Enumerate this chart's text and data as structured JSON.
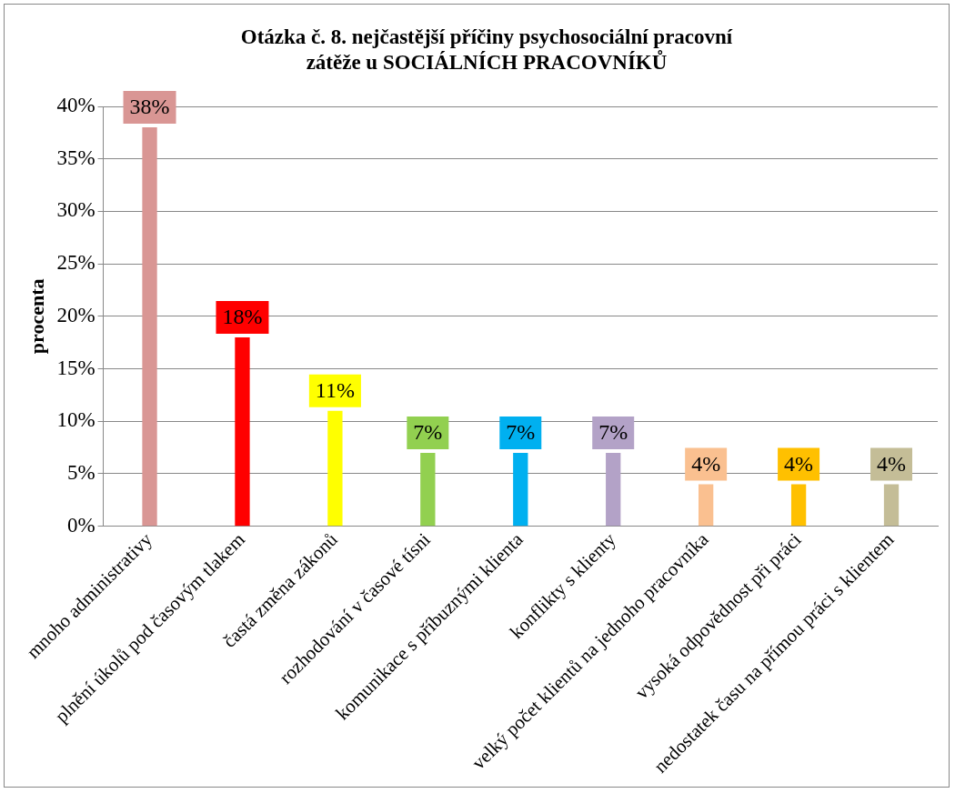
{
  "chart_data": {
    "type": "bar",
    "title": "Otázka č. 8. nejčastější příčiny psychosociální pracovní zátěže u SOCIÁLNÍCH PRACOVNÍKŮ",
    "ylabel": "procenta",
    "categories": [
      "mnoho administrativy",
      "plnění úkolů pod časovým tlakem",
      "častá změna zákonů",
      "rozhodování v časové tísni",
      "komunikace s příbuznými klienta",
      "konflikty s klienty",
      "velký počet klientů na jednoho pracovníka",
      "vysoká odpovědnost při práci",
      "nedostatek času na přímou práci s klientem"
    ],
    "values": [
      38,
      18,
      11,
      7,
      7,
      7,
      4,
      4,
      4
    ],
    "colors": [
      "#d99694",
      "#ff0000",
      "#ffff00",
      "#92d050",
      "#00b0f0",
      "#b3a2c7",
      "#fac090",
      "#ffc000",
      "#c4bd97"
    ],
    "value_labels": [
      "38%",
      "18%",
      "11%",
      "7%",
      "7%",
      "7%",
      "4%",
      "4%",
      "4%"
    ],
    "ylim": [
      0,
      40
    ],
    "yticks": [
      {
        "value": 0,
        "label": "0%"
      },
      {
        "value": 5,
        "label": "5%"
      },
      {
        "value": 10,
        "label": "10%"
      },
      {
        "value": 15,
        "label": "15%"
      },
      {
        "value": 20,
        "label": "20%"
      },
      {
        "value": 25,
        "label": "25%"
      },
      {
        "value": 30,
        "label": "30%"
      },
      {
        "value": 35,
        "label": "35%"
      },
      {
        "value": 40,
        "label": "40%"
      }
    ],
    "grid": "y",
    "legend": false
  }
}
